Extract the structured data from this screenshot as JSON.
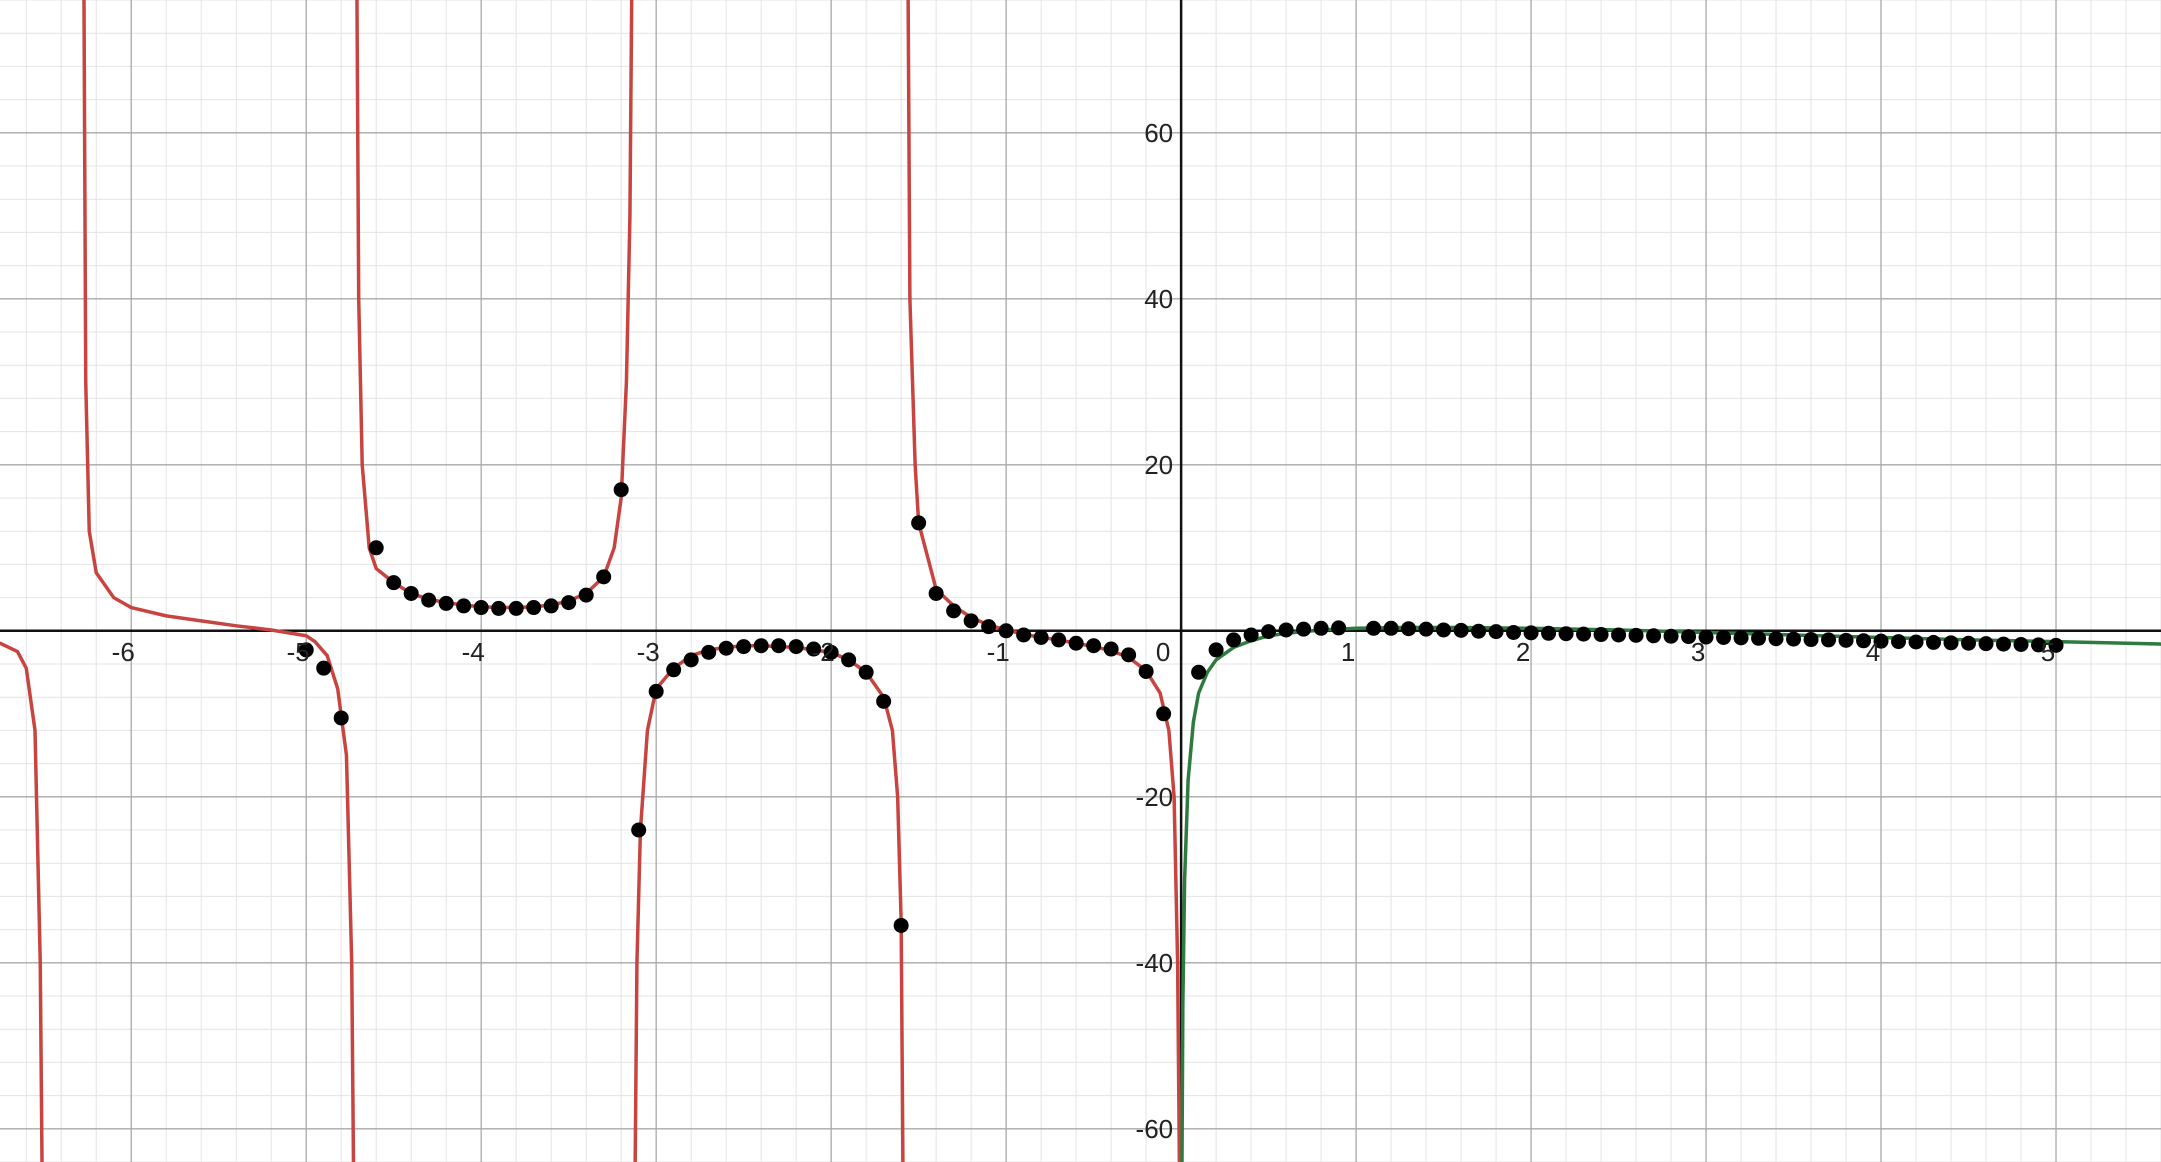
{
  "chart_data": {
    "type": "line",
    "title": "",
    "xlabel": "",
    "ylabel": "",
    "xlim": [
      -6.75,
      5.6
    ],
    "ylim": [
      -64,
      76
    ],
    "grid": true,
    "x_ticks": [
      {
        "value": -6,
        "label": "-6"
      },
      {
        "value": -5,
        "label": "-5"
      },
      {
        "value": -4,
        "label": "-4"
      },
      {
        "value": -3,
        "label": "-3"
      },
      {
        "value": -2,
        "label": "-2"
      },
      {
        "value": -1,
        "label": "-1"
      },
      {
        "value": 0,
        "label": "0"
      },
      {
        "value": 1,
        "label": "1"
      },
      {
        "value": 2,
        "label": "2"
      },
      {
        "value": 3,
        "label": "3"
      },
      {
        "value": 4,
        "label": "4"
      },
      {
        "value": 5,
        "label": "5"
      }
    ],
    "y_ticks": [
      {
        "value": -60,
        "label": "-60"
      },
      {
        "value": -40,
        "label": "-40"
      },
      {
        "value": -20,
        "label": "-20"
      },
      {
        "value": 20,
        "label": "20"
      },
      {
        "value": 40,
        "label": "40"
      },
      {
        "value": 60,
        "label": "60"
      }
    ],
    "series": [
      {
        "type": "line",
        "color": "#c74440",
        "domain": [
          -6.75,
          0
        ],
        "description": "curve with vertical asymptotes near x = -6.3, -4.7, -3.1, -1.55, 0",
        "points": [
          [
            -6.75,
            -1.5
          ],
          [
            -6.65,
            -2.5
          ],
          [
            -6.6,
            -4.5
          ],
          [
            -6.55,
            -12
          ],
          [
            -6.52,
            -40
          ],
          [
            -6.51,
            -64
          ],
          [
            -6.27,
            76
          ],
          [
            -6.26,
            30
          ],
          [
            -6.24,
            12
          ],
          [
            -6.2,
            7
          ],
          [
            -6.1,
            4
          ],
          [
            -6.0,
            2.8
          ],
          [
            -5.8,
            1.8
          ],
          [
            -5.6,
            1.2
          ],
          [
            -5.4,
            0.6
          ],
          [
            -5.2,
            0.1
          ],
          [
            -5.0,
            -0.6
          ],
          [
            -4.95,
            -1.3
          ],
          [
            -4.88,
            -3
          ],
          [
            -4.82,
            -7
          ],
          [
            -4.77,
            -15
          ],
          [
            -4.74,
            -40
          ],
          [
            -4.73,
            -64
          ],
          [
            -4.71,
            76
          ],
          [
            -4.7,
            40
          ],
          [
            -4.68,
            20
          ],
          [
            -4.64,
            10
          ],
          [
            -4.6,
            7.5
          ],
          [
            -4.5,
            5.8
          ],
          [
            -4.4,
            4.5
          ],
          [
            -4.3,
            3.8
          ],
          [
            -4.2,
            3.4
          ],
          [
            -4.1,
            3.1
          ],
          [
            -4.0,
            2.9
          ],
          [
            -3.9,
            2.8
          ],
          [
            -3.8,
            2.8
          ],
          [
            -3.7,
            2.9
          ],
          [
            -3.6,
            3.1
          ],
          [
            -3.5,
            3.6
          ],
          [
            -3.4,
            4.5
          ],
          [
            -3.3,
            6.5
          ],
          [
            -3.24,
            10
          ],
          [
            -3.2,
            16
          ],
          [
            -3.17,
            30
          ],
          [
            -3.15,
            50
          ],
          [
            -3.14,
            76
          ],
          [
            -3.12,
            -64
          ],
          [
            -3.11,
            -40
          ],
          [
            -3.09,
            -24
          ],
          [
            -3.05,
            -12
          ],
          [
            -3.0,
            -7
          ],
          [
            -2.9,
            -4.5
          ],
          [
            -2.8,
            -3
          ],
          [
            -2.7,
            -2.3
          ],
          [
            -2.6,
            -2
          ],
          [
            -2.5,
            -1.8
          ],
          [
            -2.4,
            -1.8
          ],
          [
            -2.3,
            -1.9
          ],
          [
            -2.2,
            -2
          ],
          [
            -2.1,
            -2.3
          ],
          [
            -2.0,
            -2.6
          ],
          [
            -1.9,
            -3.5
          ],
          [
            -1.8,
            -5
          ],
          [
            -1.7,
            -8
          ],
          [
            -1.65,
            -12
          ],
          [
            -1.62,
            -20
          ],
          [
            -1.6,
            -35
          ],
          [
            -1.59,
            -64
          ],
          [
            -1.56,
            76
          ],
          [
            -1.55,
            40
          ],
          [
            -1.52,
            20
          ],
          [
            -1.5,
            13
          ],
          [
            -1.45,
            9
          ],
          [
            -1.4,
            5
          ],
          [
            -1.3,
            3
          ],
          [
            -1.2,
            1.6
          ],
          [
            -1.1,
            0.7
          ],
          [
            -1.0,
            0.1
          ],
          [
            -0.9,
            -0.4
          ],
          [
            -0.8,
            -0.8
          ],
          [
            -0.7,
            -1.1
          ],
          [
            -0.6,
            -1.5
          ],
          [
            -0.5,
            -1.9
          ],
          [
            -0.4,
            -2.4
          ],
          [
            -0.3,
            -3.2
          ],
          [
            -0.2,
            -4.8
          ],
          [
            -0.12,
            -7.5
          ],
          [
            -0.07,
            -12
          ],
          [
            -0.04,
            -20
          ],
          [
            -0.02,
            -40
          ],
          [
            -0.01,
            -64
          ]
        ]
      },
      {
        "type": "line",
        "color": "#2d7b3f",
        "domain": [
          0,
          5.6
        ],
        "description": "curve from -infinity near x = 0 rising to about 0.4 and slowly decaying",
        "points": [
          [
            0.005,
            -64
          ],
          [
            0.01,
            -45
          ],
          [
            0.02,
            -30
          ],
          [
            0.04,
            -18
          ],
          [
            0.07,
            -11
          ],
          [
            0.1,
            -7.5
          ],
          [
            0.15,
            -5
          ],
          [
            0.2,
            -3.5
          ],
          [
            0.3,
            -2
          ],
          [
            0.4,
            -1.2
          ],
          [
            0.5,
            -0.6
          ],
          [
            0.6,
            -0.3
          ],
          [
            0.7,
            -0.1
          ],
          [
            0.8,
            0.1
          ],
          [
            1.0,
            0.3
          ],
          [
            1.3,
            0.4
          ],
          [
            1.6,
            0.4
          ],
          [
            2.0,
            0.3
          ],
          [
            2.5,
            0.1
          ],
          [
            3.0,
            -0.2
          ],
          [
            3.5,
            -0.5
          ],
          [
            4.0,
            -0.8
          ],
          [
            4.5,
            -1.1
          ],
          [
            5.0,
            -1.3
          ],
          [
            5.6,
            -1.6
          ]
        ]
      },
      {
        "type": "scatter",
        "color": "#000000",
        "points": [
          [
            -5.0,
            -2.3
          ],
          [
            -4.9,
            -4.5
          ],
          [
            -4.8,
            -10.5
          ],
          [
            -4.6,
            10
          ],
          [
            -4.5,
            5.8
          ],
          [
            -4.4,
            4.5
          ],
          [
            -4.3,
            3.7
          ],
          [
            -4.2,
            3.3
          ],
          [
            -4.1,
            3.0
          ],
          [
            -4.0,
            2.8
          ],
          [
            -3.9,
            2.7
          ],
          [
            -3.8,
            2.7
          ],
          [
            -3.7,
            2.8
          ],
          [
            -3.6,
            3.0
          ],
          [
            -3.5,
            3.4
          ],
          [
            -3.4,
            4.3
          ],
          [
            -3.3,
            6.5
          ],
          [
            -3.2,
            17
          ],
          [
            -3.1,
            -24
          ],
          [
            -3.0,
            -7.3
          ],
          [
            -2.9,
            -4.7
          ],
          [
            -2.8,
            -3.5
          ],
          [
            -2.7,
            -2.6
          ],
          [
            -2.6,
            -2.1
          ],
          [
            -2.5,
            -1.9
          ],
          [
            -2.4,
            -1.8
          ],
          [
            -2.3,
            -1.8
          ],
          [
            -2.2,
            -1.9
          ],
          [
            -2.1,
            -2.2
          ],
          [
            -2.0,
            -2.6
          ],
          [
            -1.9,
            -3.5
          ],
          [
            -1.8,
            -5
          ],
          [
            -1.7,
            -8.5
          ],
          [
            -1.6,
            -35.5
          ],
          [
            -1.5,
            13
          ],
          [
            -1.4,
            4.5
          ],
          [
            -1.3,
            2.4
          ],
          [
            -1.2,
            1.2
          ],
          [
            -1.1,
            0.5
          ],
          [
            -1.0,
            0
          ],
          [
            -0.9,
            -0.5
          ],
          [
            -0.8,
            -0.8
          ],
          [
            -0.7,
            -1.1
          ],
          [
            -0.6,
            -1.5
          ],
          [
            -0.5,
            -1.8
          ],
          [
            -0.4,
            -2.2
          ],
          [
            -0.3,
            -2.9
          ],
          [
            -0.2,
            -4.9
          ],
          [
            -0.1,
            -10
          ],
          [
            0.1,
            -5
          ],
          [
            0.2,
            -2.3
          ],
          [
            0.3,
            -1.1
          ],
          [
            0.4,
            -0.5
          ],
          [
            0.5,
            -0.1
          ],
          [
            0.6,
            0.1
          ],
          [
            0.7,
            0.2
          ],
          [
            0.8,
            0.3
          ],
          [
            0.9,
            0.35
          ],
          [
            1.1,
            0.3
          ],
          [
            1.2,
            0.3
          ],
          [
            1.3,
            0.25
          ],
          [
            1.4,
            0.2
          ],
          [
            1.5,
            0.1
          ],
          [
            1.6,
            0.05
          ],
          [
            1.7,
            -0.05
          ],
          [
            1.8,
            -0.1
          ],
          [
            1.9,
            -0.2
          ],
          [
            2.0,
            -0.25
          ],
          [
            2.1,
            -0.3
          ],
          [
            2.2,
            -0.35
          ],
          [
            2.3,
            -0.4
          ],
          [
            2.4,
            -0.45
          ],
          [
            2.5,
            -0.5
          ],
          [
            2.6,
            -0.55
          ],
          [
            2.7,
            -0.6
          ],
          [
            2.8,
            -0.65
          ],
          [
            2.9,
            -0.7
          ],
          [
            3.0,
            -0.75
          ],
          [
            3.1,
            -0.8
          ],
          [
            3.2,
            -0.85
          ],
          [
            3.3,
            -0.9
          ],
          [
            3.4,
            -0.95
          ],
          [
            3.5,
            -1.0
          ],
          [
            3.6,
            -1.05
          ],
          [
            3.7,
            -1.1
          ],
          [
            3.8,
            -1.15
          ],
          [
            3.9,
            -1.2
          ],
          [
            4.0,
            -1.25
          ],
          [
            4.1,
            -1.3
          ],
          [
            4.2,
            -1.35
          ],
          [
            4.3,
            -1.4
          ],
          [
            4.4,
            -1.45
          ],
          [
            4.5,
            -1.5
          ],
          [
            4.6,
            -1.55
          ],
          [
            4.7,
            -1.6
          ],
          [
            4.8,
            -1.65
          ],
          [
            4.9,
            -1.7
          ],
          [
            5.0,
            -1.75
          ]
        ]
      }
    ]
  }
}
